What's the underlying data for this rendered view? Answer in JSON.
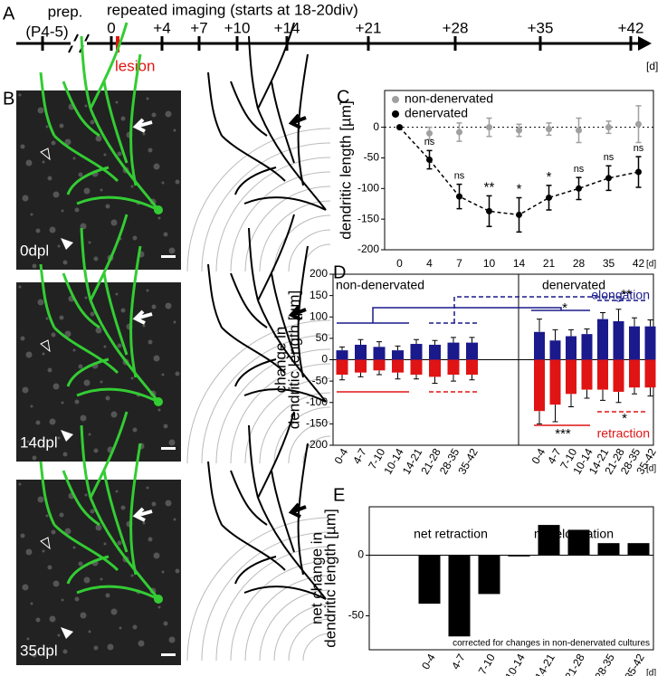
{
  "timeline": {
    "panel": "A",
    "prep": "prep.",
    "age": "(P4-5)",
    "title": "repeated imaging (starts at 18-20div)",
    "days": [
      "0",
      "+4",
      "+7",
      "+10",
      "+14",
      "+21",
      "+28",
      "+35",
      "+42"
    ],
    "lesion": "lesion",
    "unit": "[d]"
  },
  "panel_b": {
    "panel": "B",
    "images": [
      {
        "label": "0dpl"
      },
      {
        "label": "14dpl"
      },
      {
        "label": "35dpl"
      }
    ]
  },
  "chart_data": [
    {
      "panel": "C",
      "type": "line",
      "categories": [
        0,
        4,
        7,
        10,
        14,
        21,
        28,
        35,
        42
      ],
      "series": [
        {
          "name": "non-denervated",
          "color": "#a0a0a0",
          "values": [
            0,
            -10,
            -8,
            0,
            -5,
            -3,
            -5,
            0,
            5
          ],
          "errors": [
            0,
            10,
            15,
            15,
            10,
            10,
            20,
            10,
            30
          ]
        },
        {
          "name": "denervated",
          "color": "#000000",
          "dashed": true,
          "values": [
            0,
            -53,
            -113,
            -137,
            -143,
            -115,
            -100,
            -83,
            -73
          ],
          "errors": [
            0,
            15,
            20,
            25,
            28,
            20,
            18,
            20,
            25
          ],
          "significance": [
            null,
            "ns",
            "ns",
            "**",
            "*",
            "*",
            "ns",
            "ns",
            "ns"
          ]
        }
      ],
      "ylabel": "dendritic length [µm]",
      "xunit": "[d]",
      "ylim": [
        -200,
        60
      ],
      "yticks": [
        0,
        -50,
        -100,
        -150,
        -200
      ]
    },
    {
      "panel": "D",
      "type": "bar",
      "groups": [
        "non-denervated",
        "denervated"
      ],
      "categories": [
        "0-4",
        "4-7",
        "7-10",
        "10-14",
        "14-21",
        "21-28",
        "28-35",
        "35-42",
        "0-4",
        "4-7",
        "7-10",
        "10-14",
        "14-21",
        "21-28",
        "28-35",
        "35-42"
      ],
      "series": [
        {
          "name": "elongation",
          "color": "#1a1a8c",
          "values": [
            22,
            35,
            30,
            22,
            37,
            35,
            40,
            40,
            65,
            45,
            55,
            60,
            95,
            90,
            78,
            78
          ],
          "errors": [
            8,
            12,
            12,
            10,
            10,
            10,
            12,
            12,
            30,
            25,
            15,
            12,
            15,
            28,
            20,
            15
          ]
        },
        {
          "name": "retraction",
          "color": "#e01414",
          "values": [
            -35,
            -30,
            -25,
            -30,
            -35,
            -40,
            -35,
            -35,
            -120,
            -105,
            -80,
            -70,
            -70,
            -75,
            -65,
            -65
          ],
          "errors": [
            12,
            10,
            10,
            15,
            10,
            15,
            15,
            12,
            30,
            40,
            30,
            20,
            25,
            25,
            15,
            20
          ]
        }
      ],
      "annotations": [
        "*",
        "**",
        "***",
        "*"
      ],
      "ylabel": [
        "change in",
        "dendritic length [µm]"
      ],
      "xunit": "[d]",
      "ylim": [
        -200,
        200
      ],
      "yticks": [
        200,
        150,
        100,
        50,
        0,
        -50,
        -100,
        -150,
        -200
      ]
    },
    {
      "panel": "E",
      "type": "bar",
      "categories": [
        "0-4",
        "4-7",
        "7-10",
        "10-14",
        "14-21",
        "21-28",
        "28-35",
        "35-42"
      ],
      "values": [
        -40,
        -67,
        -32,
        -1,
        25,
        21,
        10,
        10
      ],
      "color": "#000000",
      "labels": [
        "net retraction",
        "net elongation"
      ],
      "note": "corrected for changes in non-denervated cultures",
      "ylabel": [
        "net change in",
        "dendritic length [µm]"
      ],
      "xunit": "[d]",
      "ylim": [
        -78,
        40
      ],
      "yticks": [
        0,
        -50
      ]
    }
  ]
}
